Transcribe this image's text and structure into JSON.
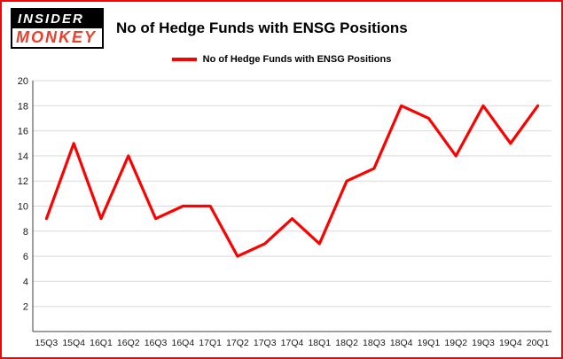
{
  "brand": {
    "logo_line1": "INSIDER",
    "logo_line2": "MONKEY",
    "logo_bg": "#000000",
    "logo_line1_color": "#ffffff",
    "logo_line2_color": "#e8402d"
  },
  "header": {
    "title": "No of Hedge Funds with ENSG Positions"
  },
  "legend": {
    "label": "No of Hedge Funds with ENSG Positions",
    "color": "#ff0000"
  },
  "colors": {
    "frame_border": "#ff0000",
    "line": "#ff0000",
    "grid": "#d9d9d9",
    "axis": "#3f3f3f",
    "tick_text": "#1a1a1a"
  },
  "chart_data": {
    "type": "line",
    "title": "No of Hedge Funds with ENSG Positions",
    "categories": [
      "15Q3",
      "15Q4",
      "16Q1",
      "16Q2",
      "16Q3",
      "16Q4",
      "17Q1",
      "17Q2",
      "17Q3",
      "17Q4",
      "18Q1",
      "18Q2",
      "18Q3",
      "18Q4",
      "19Q1",
      "19Q2",
      "19Q3",
      "19Q4",
      "20Q1"
    ],
    "values": [
      9,
      15,
      9,
      14,
      9,
      10,
      10,
      6,
      7,
      9,
      7,
      12,
      13,
      18,
      17,
      14,
      18,
      15,
      18
    ],
    "xlabel": "",
    "ylabel": "",
    "ylim": [
      0,
      20
    ],
    "ytick_step": 2,
    "grid": true,
    "legend_position": "top",
    "line_color": "#ff0000",
    "line_width": 3.2
  }
}
